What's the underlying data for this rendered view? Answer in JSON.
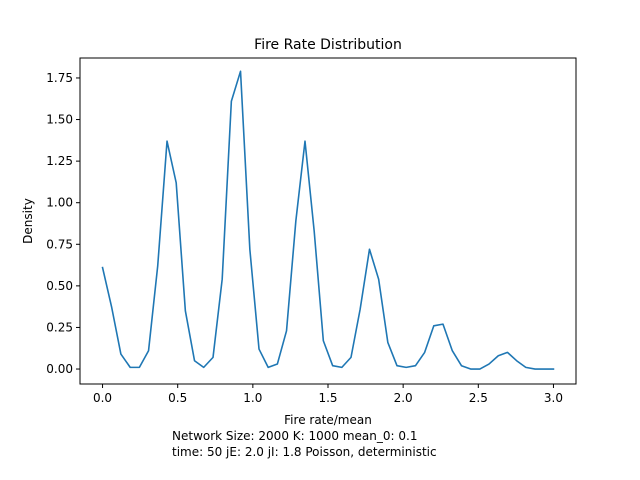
{
  "chart_data": {
    "type": "line",
    "title": "Fire Rate Distribution",
    "xlabel": "Fire rate/mean",
    "ylabel": "Density",
    "caption": [
      "Network Size: 2000  K: 1000  mean_0: 0.1",
      "time: 50   jE: 2.0   jI: 1.8  Poisson, deterministic"
    ],
    "xlim": [
      -0.15,
      3.15
    ],
    "ylim": [
      -0.09,
      1.87
    ],
    "xticks": [
      0.0,
      0.5,
      1.0,
      1.5,
      2.0,
      2.5,
      3.0
    ],
    "xtick_labels": [
      "0.0",
      "0.5",
      "1.0",
      "1.5",
      "2.0",
      "2.5",
      "3.0"
    ],
    "yticks": [
      0.0,
      0.25,
      0.5,
      0.75,
      1.0,
      1.25,
      1.5,
      1.75
    ],
    "ytick_labels": [
      "0.00",
      "0.25",
      "0.50",
      "0.75",
      "1.00",
      "1.25",
      "1.50",
      "1.75"
    ],
    "grid": false,
    "colors": {
      "line": "#1f77b4",
      "axes": "#000000",
      "background": "#ffffff"
    },
    "series": [
      {
        "x": [
          0.0,
          0.061,
          0.122,
          0.184,
          0.245,
          0.306,
          0.367,
          0.429,
          0.49,
          0.551,
          0.612,
          0.673,
          0.735,
          0.796,
          0.857,
          0.918,
          0.98,
          1.041,
          1.102,
          1.163,
          1.224,
          1.286,
          1.347,
          1.408,
          1.469,
          1.531,
          1.592,
          1.653,
          1.714,
          1.776,
          1.837,
          1.898,
          1.959,
          2.02,
          2.082,
          2.143,
          2.204,
          2.265,
          2.327,
          2.388,
          2.449,
          2.51,
          2.571,
          2.633,
          2.694,
          2.755,
          2.816,
          2.878,
          2.939,
          3.0
        ],
        "values": [
          0.61,
          0.37,
          0.09,
          0.01,
          0.01,
          0.11,
          0.62,
          1.37,
          1.12,
          0.35,
          0.05,
          0.01,
          0.07,
          0.54,
          1.61,
          1.79,
          0.72,
          0.12,
          0.01,
          0.03,
          0.23,
          0.89,
          1.37,
          0.83,
          0.17,
          0.02,
          0.01,
          0.07,
          0.36,
          0.72,
          0.54,
          0.16,
          0.02,
          0.01,
          0.02,
          0.1,
          0.26,
          0.27,
          0.11,
          0.02,
          0.0,
          0.0,
          0.03,
          0.08,
          0.1,
          0.05,
          0.01,
          0.0,
          0.0,
          0.0
        ]
      }
    ]
  }
}
